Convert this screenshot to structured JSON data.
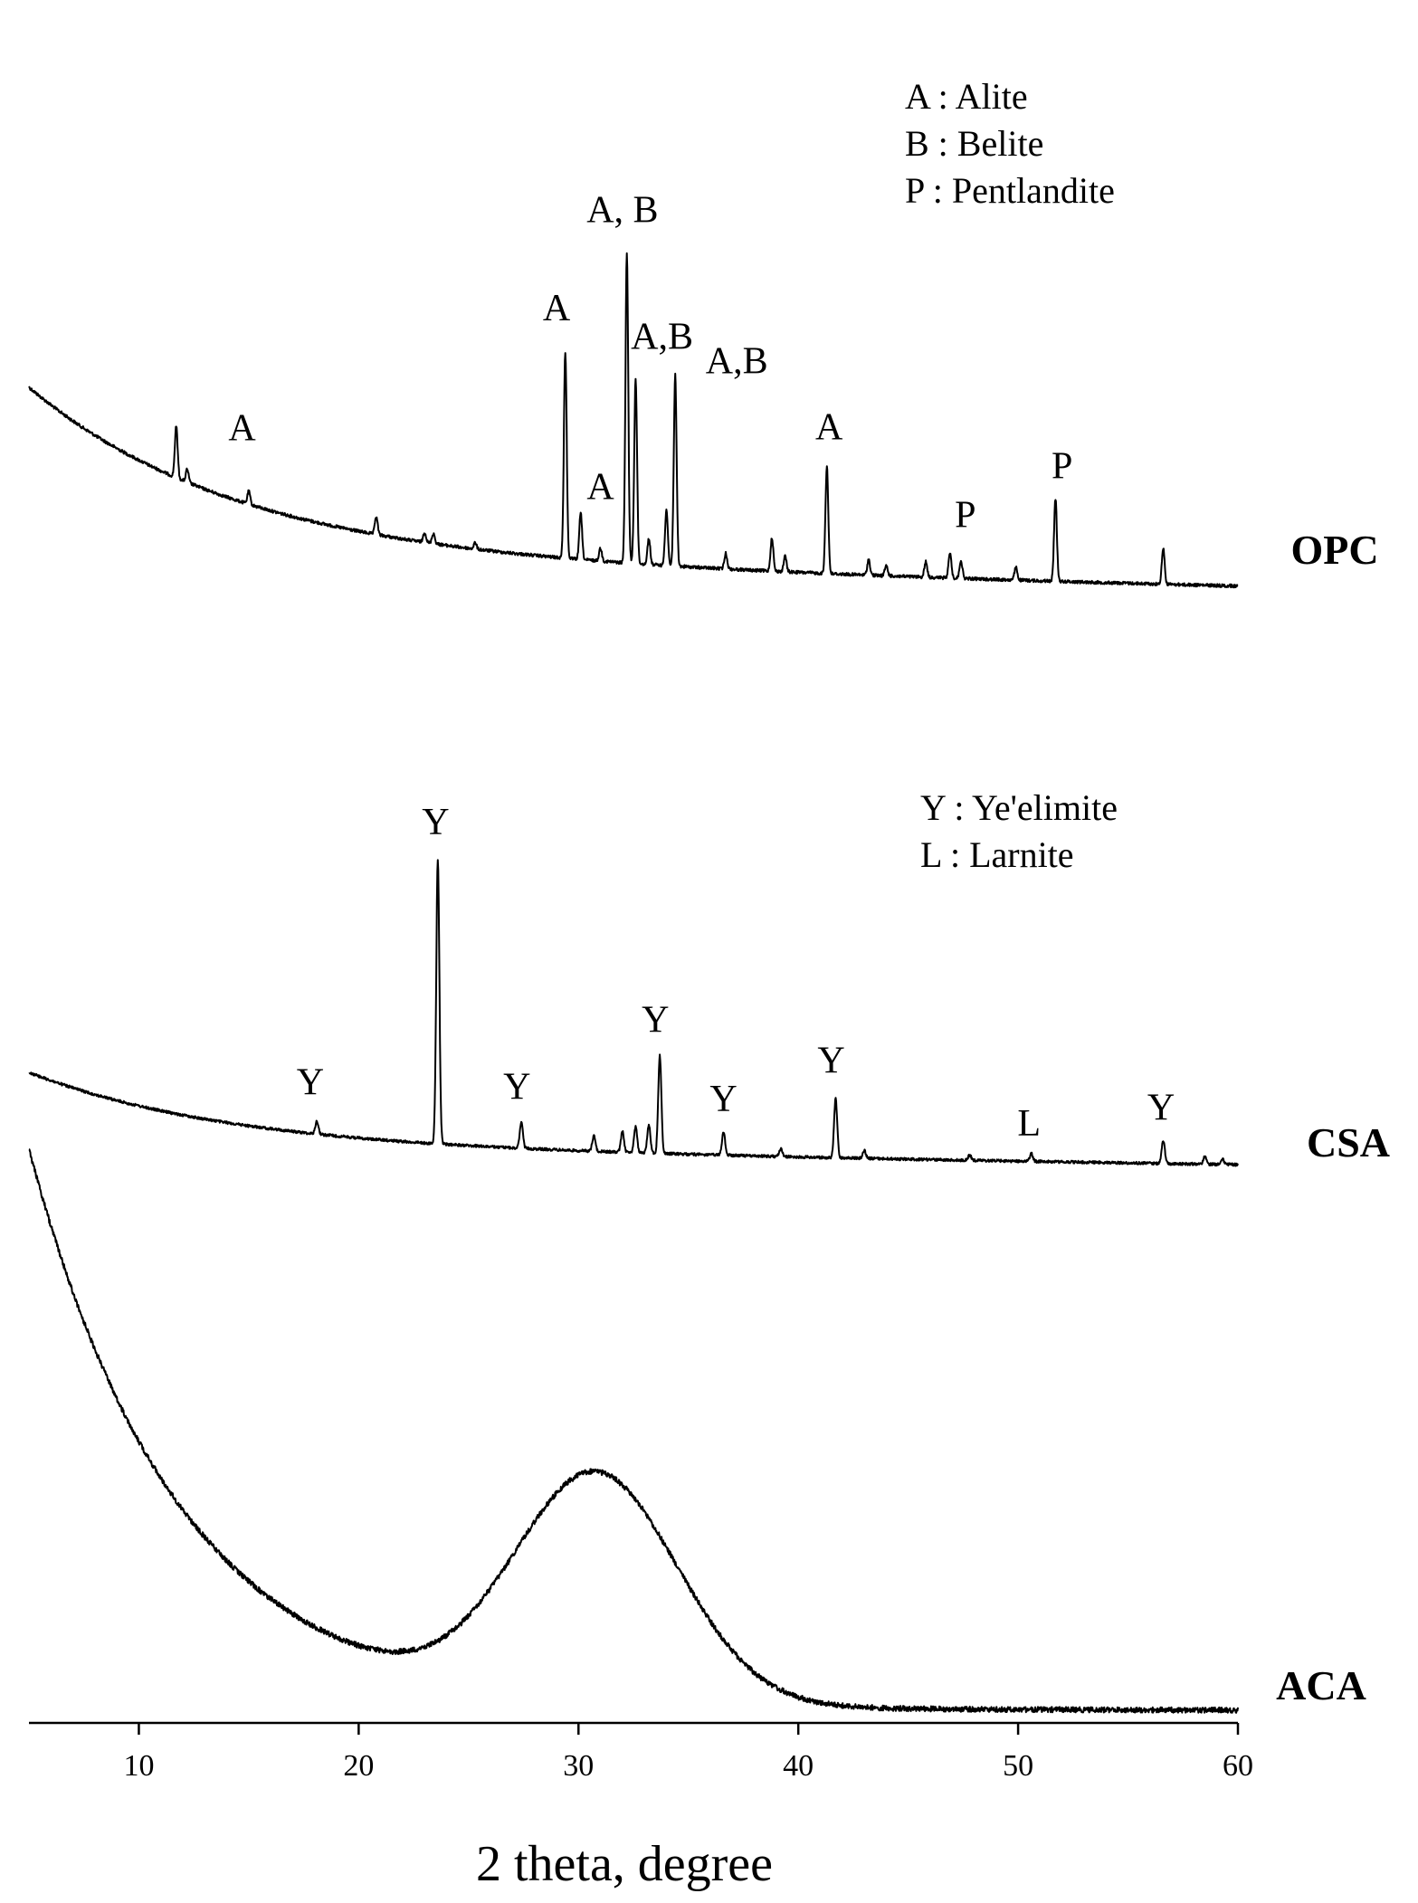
{
  "chart_data": {
    "type": "line",
    "title": "",
    "xlabel": "2 theta, degree",
    "ylabel": "",
    "xlim": [
      5,
      60
    ],
    "xticks": [
      10,
      20,
      30,
      40,
      50,
      60
    ],
    "grid": false,
    "series": [
      {
        "name": "OPC",
        "peaks": [
          {
            "x": 11.7,
            "h": 1.0
          },
          {
            "x": 12.2,
            "h": 0.25
          },
          {
            "x": 15.0,
            "h": 0.25
          },
          {
            "x": 20.8,
            "h": 0.35
          },
          {
            "x": 23.0,
            "h": 0.2
          },
          {
            "x": 23.4,
            "h": 0.2
          },
          {
            "x": 25.3,
            "h": 0.12
          },
          {
            "x": 29.4,
            "h": 4.0
          },
          {
            "x": 30.1,
            "h": 0.9
          },
          {
            "x": 31.0,
            "h": 0.25
          },
          {
            "x": 32.2,
            "h": 6.0
          },
          {
            "x": 32.6,
            "h": 3.6
          },
          {
            "x": 33.2,
            "h": 0.5
          },
          {
            "x": 34.0,
            "h": 1.1
          },
          {
            "x": 34.4,
            "h": 3.7
          },
          {
            "x": 36.7,
            "h": 0.3
          },
          {
            "x": 38.8,
            "h": 0.65
          },
          {
            "x": 39.4,
            "h": 0.3
          },
          {
            "x": 41.3,
            "h": 2.1
          },
          {
            "x": 43.2,
            "h": 0.3
          },
          {
            "x": 44.0,
            "h": 0.2
          },
          {
            "x": 45.8,
            "h": 0.3
          },
          {
            "x": 46.9,
            "h": 0.5
          },
          {
            "x": 47.4,
            "h": 0.35
          },
          {
            "x": 49.9,
            "h": 0.25
          },
          {
            "x": 51.7,
            "h": 1.6
          },
          {
            "x": 56.6,
            "h": 0.7
          }
        ],
        "annotations": [
          {
            "text": "A",
            "x": 14.7,
            "level": 1.2
          },
          {
            "text": "A, B",
            "x": 32.0,
            "level": 6.6
          },
          {
            "text": "A",
            "x": 29.0,
            "level": 4.6
          },
          {
            "text": "A,B",
            "x": 33.8,
            "level": 4.2
          },
          {
            "text": "A,B",
            "x": 37.2,
            "level": 3.8
          },
          {
            "text": "A",
            "x": 31.0,
            "level": 1.2
          },
          {
            "text": "A",
            "x": 41.4,
            "level": 2.6
          },
          {
            "text": "P",
            "x": 47.6,
            "level": 1.0
          },
          {
            "text": "P",
            "x": 52.0,
            "level": 2.0
          }
        ],
        "legend": [
          "A : Alite",
          "B : Belite",
          "P : Pentlandite"
        ]
      },
      {
        "name": "CSA",
        "peaks": [
          {
            "x": 18.1,
            "h": 0.25
          },
          {
            "x": 23.6,
            "h": 5.5
          },
          {
            "x": 27.4,
            "h": 0.5
          },
          {
            "x": 30.7,
            "h": 0.3
          },
          {
            "x": 32.0,
            "h": 0.4
          },
          {
            "x": 32.6,
            "h": 0.5
          },
          {
            "x": 33.2,
            "h": 0.55
          },
          {
            "x": 33.7,
            "h": 1.9
          },
          {
            "x": 36.6,
            "h": 0.45
          },
          {
            "x": 39.2,
            "h": 0.15
          },
          {
            "x": 41.7,
            "h": 1.15
          },
          {
            "x": 43.0,
            "h": 0.15
          },
          {
            "x": 47.8,
            "h": 0.1
          },
          {
            "x": 50.6,
            "h": 0.15
          },
          {
            "x": 56.6,
            "h": 0.45
          },
          {
            "x": 58.5,
            "h": 0.15
          },
          {
            "x": 59.3,
            "h": 0.1
          }
        ],
        "annotations": [
          {
            "text": "Y",
            "x": 17.8,
            "level": 0.75
          },
          {
            "text": "Y",
            "x": 23.5,
            "level": 6.0
          },
          {
            "text": "Y",
            "x": 27.2,
            "level": 0.95
          },
          {
            "text": "Y",
            "x": 33.5,
            "level": 2.35
          },
          {
            "text": "Y",
            "x": 36.6,
            "level": 0.85
          },
          {
            "text": "Y",
            "x": 41.5,
            "level": 1.65
          },
          {
            "text": "L",
            "x": 50.5,
            "level": 0.5
          },
          {
            "text": "Y",
            "x": 56.5,
            "level": 0.85
          }
        ],
        "legend": [
          "Y : Ye'elimite",
          "L :  Larnite"
        ]
      },
      {
        "name": "ACA",
        "peaks": [],
        "annotations": [],
        "legend": []
      }
    ]
  }
}
